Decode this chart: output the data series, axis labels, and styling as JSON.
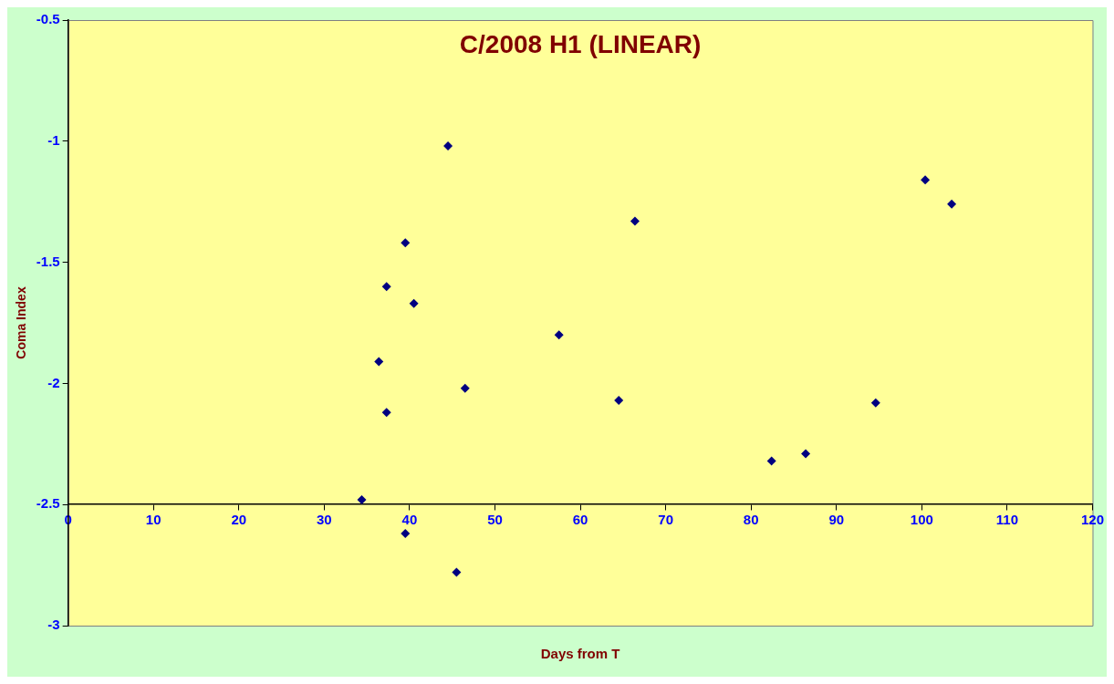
{
  "chart_data": {
    "type": "scatter",
    "title": "C/2008 H1 (LINEAR)",
    "xlabel": "Days from T",
    "ylabel": "Coma Index",
    "x": [
      34.4,
      36.4,
      37.3,
      37.3,
      39.5,
      39.5,
      40.5,
      44.5,
      45.5,
      46.5,
      57.5,
      64.5,
      66.4,
      82.4,
      86.4,
      94.6,
      100.4,
      103.5
    ],
    "series": [
      {
        "color": "#000080",
        "values": [
          -2.48,
          -1.91,
          -1.6,
          -2.12,
          -1.42,
          -2.62,
          -1.67,
          -1.02,
          -2.78,
          -2.02,
          -1.8,
          -2.07,
          -1.33,
          -2.32,
          -2.29,
          -2.08,
          -1.16,
          -1.26
        ]
      }
    ],
    "xlim": [
      0,
      120
    ],
    "xticks": [
      0,
      10,
      20,
      30,
      40,
      50,
      60,
      70,
      80,
      90,
      100,
      110,
      120
    ],
    "ylim": [
      -3,
      -0.5
    ],
    "yticks": [
      -3,
      -2.5,
      -2,
      -1.5,
      -1,
      -0.5
    ],
    "grid": false,
    "legend": false,
    "marker": "diamond"
  }
}
